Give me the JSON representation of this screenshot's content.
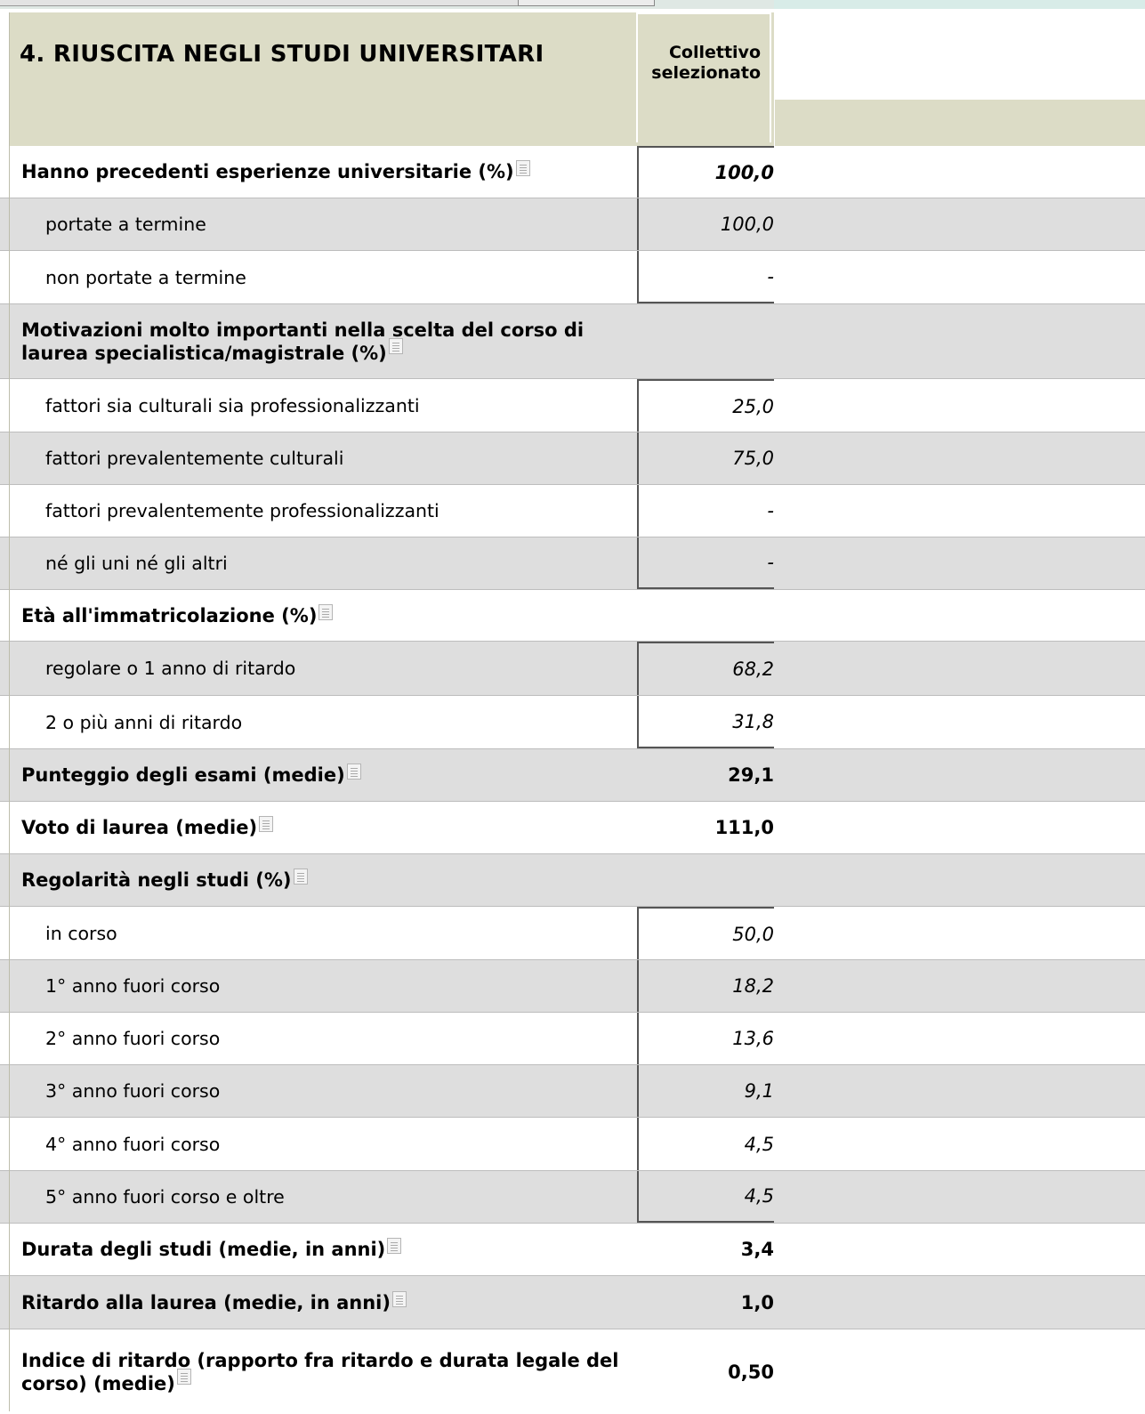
{
  "header": {
    "title": "4. RIUSCITA NEGLI STUDI UNIVERSITARI",
    "column_line1": "Collettivo",
    "column_line2": "selezionato"
  },
  "rows": [
    {
      "label": "Hanno precedenti esperienze universitarie (%)",
      "value": "100,0"
    },
    {
      "label": "portate a termine",
      "value": "100,0"
    },
    {
      "label": "non portate a termine",
      "value": "-"
    },
    {
      "label": "Motivazioni molto importanti nella scelta del corso di laurea specialistica/magistrale (%)",
      "value": ""
    },
    {
      "label": "fattori sia culturali sia professionalizzanti",
      "value": "25,0"
    },
    {
      "label": "fattori prevalentemente culturali",
      "value": "75,0"
    },
    {
      "label": "fattori prevalentemente professionalizzanti",
      "value": "-"
    },
    {
      "label": "né gli uni né gli altri",
      "value": "-"
    },
    {
      "label": "Età all'immatricolazione (%)",
      "value": ""
    },
    {
      "label": "regolare o 1 anno di ritardo",
      "value": "68,2"
    },
    {
      "label": "2 o più anni di ritardo",
      "value": "31,8"
    },
    {
      "label": "Punteggio degli esami (medie)",
      "value": "29,1"
    },
    {
      "label": "Voto di laurea (medie)",
      "value": "111,0"
    },
    {
      "label": "Regolarità negli studi (%)",
      "value": ""
    },
    {
      "label": "in corso",
      "value": "50,0"
    },
    {
      "label": "1° anno fuori corso",
      "value": "18,2"
    },
    {
      "label": "2° anno fuori corso",
      "value": "13,6"
    },
    {
      "label": "3° anno fuori corso",
      "value": "9,1"
    },
    {
      "label": "4° anno fuori corso",
      "value": "4,5"
    },
    {
      "label": "5° anno fuori corso e oltre",
      "value": "4,5"
    },
    {
      "label": "Durata degli studi (medie, in anni)",
      "value": "3,4"
    },
    {
      "label": "Ritardo alla laurea (medie, in anni)",
      "value": "1,0"
    },
    {
      "label": "Indice di ritardo (rapporto fra ritardo e durata legale del corso) (medie)",
      "value": "0,50"
    }
  ]
}
